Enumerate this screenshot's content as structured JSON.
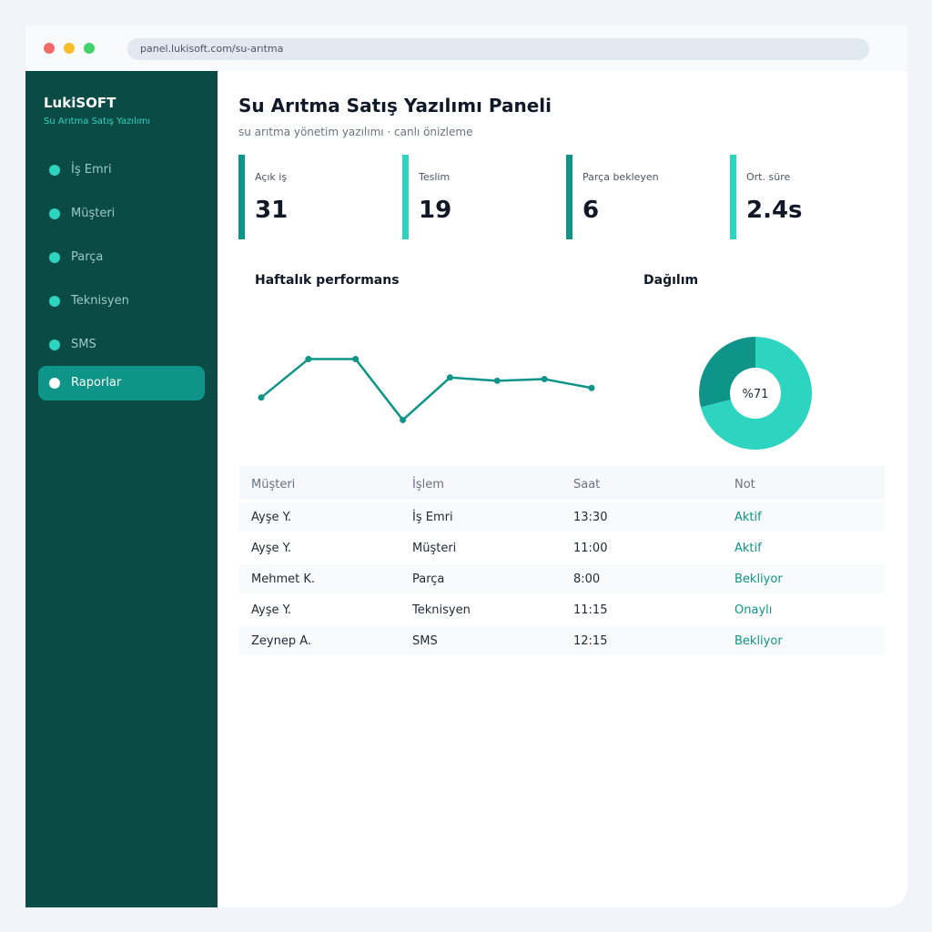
{
  "browser": {
    "url": "panel.lukisoft.com/su-arıtma"
  },
  "sidebar": {
    "brand": "LukiSOFT",
    "brand_sub": "Su Arıtma Satış Yazılımı",
    "items": [
      {
        "label": "İş Emri",
        "active": false
      },
      {
        "label": "Müşteri",
        "active": false
      },
      {
        "label": "Parça",
        "active": false
      },
      {
        "label": "Teknisyen",
        "active": false
      },
      {
        "label": "SMS",
        "active": false
      },
      {
        "label": "Raporlar",
        "active": true
      }
    ]
  },
  "header": {
    "title": "Su Arıtma Satış Yazılımı Paneli",
    "subtitle": "su arıtma yönetim yazılımı · canlı önizleme"
  },
  "kpis": [
    {
      "label": "Açık iş",
      "value": "31",
      "color": "#0e9488"
    },
    {
      "label": "Teslim",
      "value": "19",
      "color": "#2dd4bf"
    },
    {
      "label": "Parça bekleyen",
      "value": "6",
      "color": "#0e9488"
    },
    {
      "label": "Ort. süre",
      "value": "2.4s",
      "color": "#2dd4bf"
    }
  ],
  "chart_data": [
    {
      "type": "line",
      "title": "Haftalık performans",
      "x": [
        1,
        2,
        3,
        4,
        5,
        6,
        7,
        8
      ],
      "values": [
        40,
        88,
        88,
        12,
        65,
        61,
        63,
        52
      ],
      "ylim": [
        0,
        100
      ],
      "grid": false,
      "color": "#0e9488"
    },
    {
      "type": "pie",
      "title": "Dağılım",
      "center_label": "%71",
      "values": [
        71,
        29
      ],
      "colors": [
        "#2dd4bf",
        "#0e9488"
      ]
    }
  ],
  "table": {
    "columns": [
      "Müşteri",
      "İşlem",
      "Saat",
      "Not"
    ],
    "rows": [
      {
        "cells": [
          "Ayşe Y.",
          "İş Emri",
          "13:30",
          "Aktif"
        ]
      },
      {
        "cells": [
          "Ayşe Y.",
          "Müşteri",
          "11:00",
          "Aktif"
        ]
      },
      {
        "cells": [
          "Mehmet K.",
          "Parça",
          "8:00",
          "Bekliyor"
        ]
      },
      {
        "cells": [
          "Ayşe Y.",
          "Teknisyen",
          "11:15",
          "Onaylı"
        ]
      },
      {
        "cells": [
          "Zeynep A.",
          "SMS",
          "12:15",
          "Bekliyor"
        ]
      }
    ]
  }
}
